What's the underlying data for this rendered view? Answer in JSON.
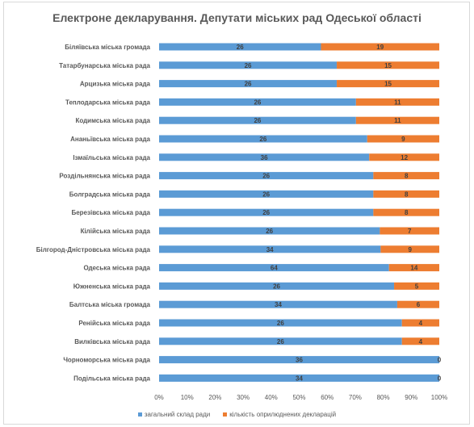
{
  "chart_data": {
    "type": "bar",
    "orientation": "horizontal",
    "stacking": "percent",
    "title": "Електроне декларування. Депутати міських рад Одеської області",
    "categories": [
      "Біляївська міська громада",
      "Татарбунарська міська рада",
      "Арцизька міська рада",
      "Теплодарська міська рада",
      "Кодимська міська рада",
      "Ананьївська міська рада",
      "Ізмаїльська міська рада",
      "Роздільнянська міська рада",
      "Болградська міська рада",
      "Березівська міська рада",
      "Кілійська міська рада",
      "Білгород-Дністровська міська рада",
      "Одеська міська рада",
      "Южненська міська рада",
      "Балтська міська громада",
      "Ренійська міська рада",
      "Вилківська міська рада",
      "Чорноморська міська рада",
      "Подільська міська рада"
    ],
    "series": [
      {
        "name": "загальний склад ради",
        "color": "#5b9bd5",
        "values": [
          26,
          26,
          26,
          26,
          26,
          26,
          36,
          26,
          26,
          26,
          26,
          34,
          64,
          26,
          34,
          26,
          26,
          36,
          34
        ]
      },
      {
        "name": "кількість оприлюднених декларацій",
        "color": "#ed7d31",
        "values": [
          19,
          15,
          15,
          11,
          11,
          9,
          12,
          8,
          8,
          8,
          7,
          9,
          14,
          5,
          6,
          4,
          4,
          0,
          0
        ]
      }
    ],
    "x_ticks": [
      "0%",
      "10%",
      "20%",
      "30%",
      "40%",
      "50%",
      "60%",
      "70%",
      "80%",
      "90%",
      "100%"
    ],
    "xlim": [
      0,
      100
    ],
    "grid": false,
    "legend": "bottom"
  }
}
